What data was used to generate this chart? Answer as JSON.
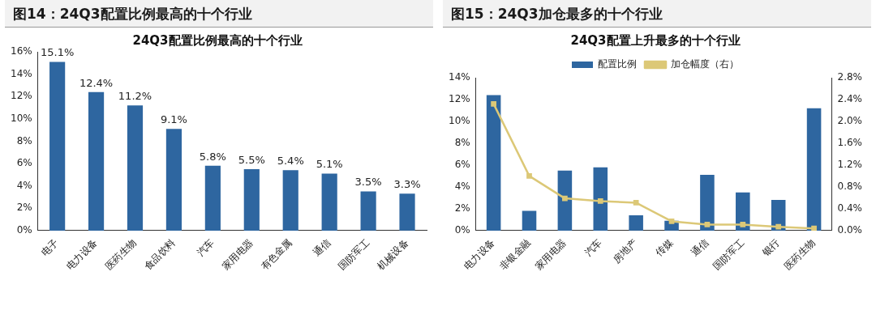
{
  "chart_data": [
    {
      "type": "bar",
      "title": "图14：24Q3配置比例最高的十个行业",
      "subtitle": "24Q3配置比例最高的十个行业",
      "categories": [
        "电子",
        "电力设备",
        "医药生物",
        "食品饮料",
        "汽车",
        "家用电器",
        "有色金属",
        "通信",
        "国防军工",
        "机械设备"
      ],
      "values": [
        15.1,
        12.4,
        11.2,
        9.1,
        5.8,
        5.5,
        5.4,
        5.1,
        3.5,
        3.3
      ],
      "color": "#2e66a0",
      "value_labels": [
        "15.1%",
        "12.4%",
        "11.2%",
        "9.1%",
        "5.8%",
        "5.5%",
        "5.4%",
        "5.1%",
        "3.5%",
        "3.3%"
      ],
      "ylim": [
        0,
        16
      ],
      "yticks": [
        {
          "value": 0,
          "label": "0%"
        },
        {
          "value": 2,
          "label": "2%"
        },
        {
          "value": 4,
          "label": "4%"
        },
        {
          "value": 6,
          "label": "6%"
        },
        {
          "value": 8,
          "label": "8%"
        },
        {
          "value": 10,
          "label": "10%"
        },
        {
          "value": 12,
          "label": "12%"
        },
        {
          "value": 14,
          "label": "14%"
        },
        {
          "value": 16,
          "label": "16%"
        }
      ],
      "grid": false,
      "legend": false
    },
    {
      "type": "bar",
      "title": "图15：24Q3加仓最多的十个行业",
      "subtitle": "24Q3配置上升最多的十个行业",
      "categories": [
        "电力设备",
        "非银金融",
        "家用电器",
        "汽车",
        "房地产",
        "传媒",
        "通信",
        "国防军工",
        "银行",
        "医药生物"
      ],
      "series": [
        {
          "name": "配置比例",
          "color": "#2e66a0",
          "values": [
            12.4,
            1.8,
            5.5,
            5.8,
            1.4,
            0.9,
            5.1,
            3.5,
            2.8,
            11.2
          ]
        },
        {
          "name": "加仓幅度（右）",
          "type": "line",
          "axis": "y2",
          "color": "#dcc877",
          "values": [
            2.32,
            1.0,
            0.59,
            0.54,
            0.51,
            0.17,
            0.11,
            0.11,
            0.07,
            0.04
          ]
        }
      ],
      "ylim": [
        0,
        14
      ],
      "yticks": [
        {
          "value": 0,
          "label": "0%"
        },
        {
          "value": 2,
          "label": "2%"
        },
        {
          "value": 4,
          "label": "4%"
        },
        {
          "value": 6,
          "label": "6%"
        },
        {
          "value": 8,
          "label": "8%"
        },
        {
          "value": 10,
          "label": "10%"
        },
        {
          "value": 12,
          "label": "12%"
        },
        {
          "value": 14,
          "label": "14%"
        }
      ],
      "y2lim": [
        0,
        2.8
      ],
      "y2ticks": [
        {
          "value": 0,
          "label": "0.0%"
        },
        {
          "value": 0.4,
          "label": "0.4%"
        },
        {
          "value": 0.8,
          "label": "0.8%"
        },
        {
          "value": 1.2,
          "label": "1.2%"
        },
        {
          "value": 1.6,
          "label": "1.6%"
        },
        {
          "value": 2.0,
          "label": "2.0%"
        },
        {
          "value": 2.4,
          "label": "2.4%"
        },
        {
          "value": 2.8,
          "label": "2.8%"
        }
      ],
      "grid": false,
      "legend": "top",
      "marker": "square",
      "line_style": "solid"
    }
  ]
}
